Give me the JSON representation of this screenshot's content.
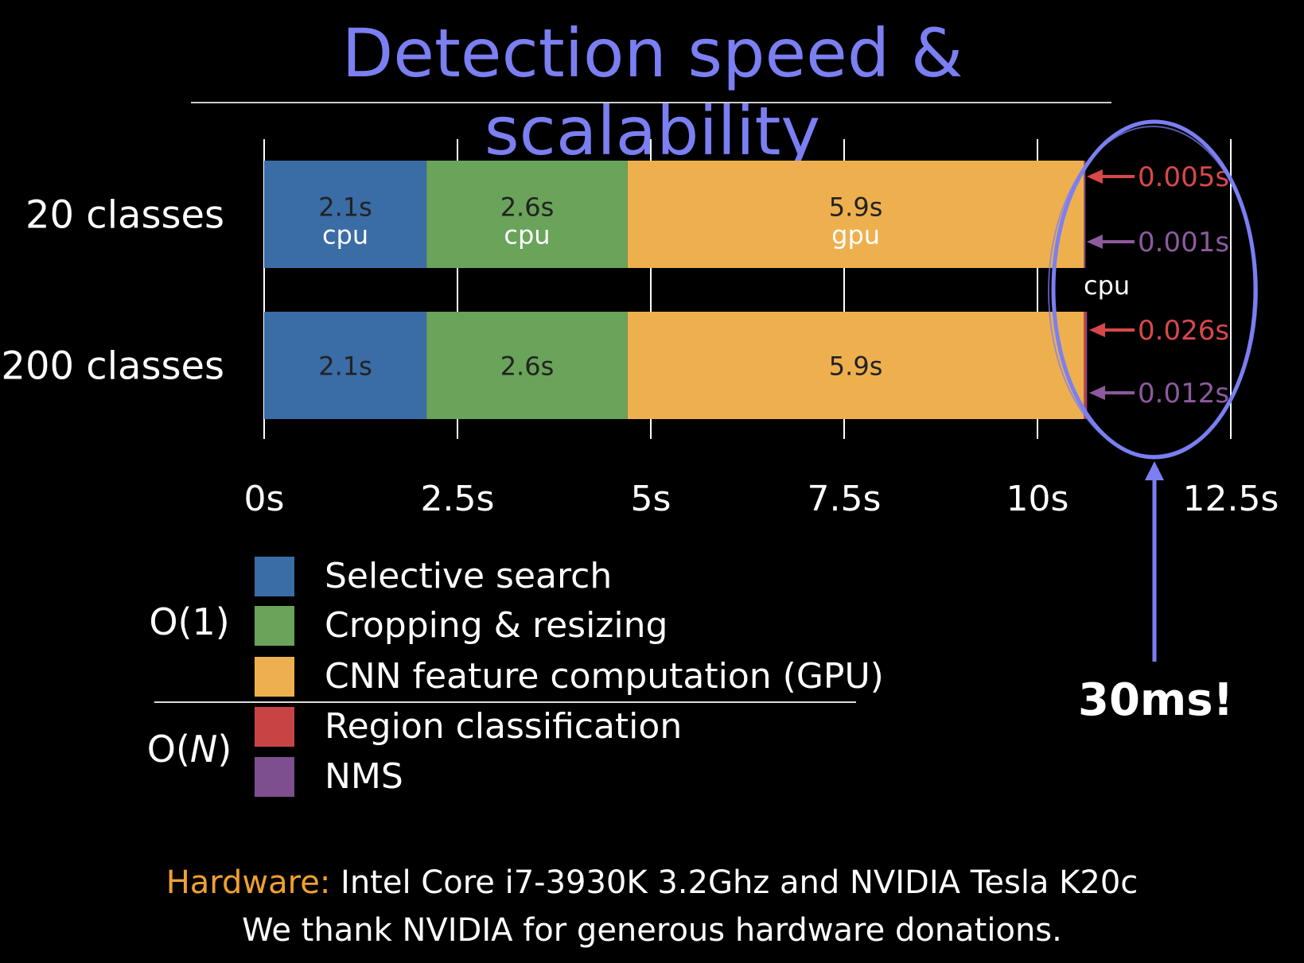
{
  "title": "Detection speed & scalability",
  "chart_data": {
    "type": "bar",
    "orientation": "horizontal",
    "stacked": true,
    "categories": [
      "20 classes",
      "200 classes"
    ],
    "series": [
      {
        "name": "Selective search",
        "color": "#3a6ca5",
        "values": [
          2.1,
          2.1
        ],
        "value_labels": [
          "2.1s",
          "2.1s"
        ],
        "device_labels": [
          "cpu",
          ""
        ]
      },
      {
        "name": "Cropping & resizing",
        "color": "#6aa35a",
        "values": [
          2.6,
          2.6
        ],
        "value_labels": [
          "2.6s",
          "2.6s"
        ],
        "device_labels": [
          "cpu",
          ""
        ]
      },
      {
        "name": "CNN feature computation (GPU)",
        "color": "#eeb04e",
        "values": [
          5.9,
          5.9
        ],
        "value_labels": [
          "5.9s",
          "5.9s"
        ],
        "device_labels": [
          "gpu",
          ""
        ]
      },
      {
        "name": "Region classification",
        "color": "#c84444",
        "values": [
          0.005,
          0.026
        ],
        "value_labels": [
          "0.005s",
          "0.026s"
        ],
        "arrow_color": "#d8484a"
      },
      {
        "name": "NMS",
        "color": "#7d4f8f",
        "values": [
          0.001,
          0.012
        ],
        "value_labels": [
          "0.001s",
          "0.012s"
        ],
        "arrow_color": "#8c5a9e"
      }
    ],
    "tail_device_label": "cpu",
    "xlim": [
      0,
      12.5
    ],
    "xticks": [
      0,
      2.5,
      5,
      7.5,
      10,
      12.5
    ],
    "xtick_labels": [
      "0s",
      "2.5s",
      "5s",
      "7.5s",
      "10s",
      "12.5s"
    ],
    "grid": true,
    "legend_position": "bottom-left"
  },
  "legend": {
    "items": [
      {
        "label": "Selective search",
        "color": "#3a6ca5"
      },
      {
        "label": "Cropping & resizing",
        "color": "#6aa35a"
      },
      {
        "label": "CNN feature computation (GPU)",
        "color": "#eeb04e"
      },
      {
        "label": "Region classification",
        "color": "#c84444"
      },
      {
        "label": "NMS",
        "color": "#7d4f8f"
      }
    ],
    "complexity_constant": "O(1)",
    "complexity_linear_prefix": "O(",
    "complexity_linear_var": "N",
    "complexity_linear_suffix": ")"
  },
  "callout": {
    "text": "30ms!",
    "ellipse_color": "#7b7ff2"
  },
  "footer": {
    "hardware_label": "Hardware:",
    "hardware_text": " Intel Core i7-3930K 3.2Ghz and NVIDIA Tesla K20c",
    "thanks": "We thank NVIDIA for generous hardware donations."
  }
}
